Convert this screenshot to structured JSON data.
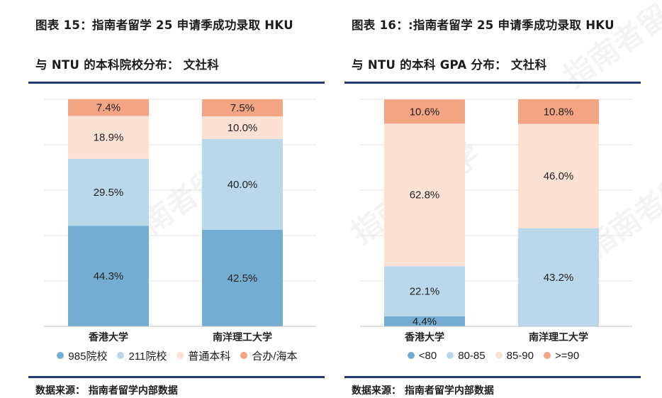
{
  "left_panel": {
    "title_line1": "图表 15：指南者留学 25 申请季成功录取 HKU",
    "title_line2": "与 NTU 的本科院校分布： 文社科",
    "source": "数据来源： 指南者留学内部数据"
  },
  "right_panel": {
    "title_line1": "图表 16：:指南者留学 25 申请季成功录取 HKU",
    "title_line2": "与 NTU 的本科 GPA 分布： 文社科",
    "source": "数据来源： 指南者留学内部数据"
  },
  "watermark_text": "指南者留学",
  "chart_data": [
    {
      "type": "bar",
      "stacked": true,
      "normalized_percent": true,
      "title": "图表 15：指南者留学 25 申请季成功录取 HKU 与 NTU 的本科院校分布： 文社科",
      "categories": [
        "香港大学",
        "南洋理工大学"
      ],
      "ylim": [
        0,
        100
      ],
      "grid": true,
      "legend_position": "bottom",
      "series": [
        {
          "name": "985院校",
          "values": [
            44.3,
            42.5
          ],
          "labels": [
            "44.3%",
            "42.5%"
          ],
          "color": "#74add1"
        },
        {
          "name": "211院校",
          "values": [
            29.5,
            40.0
          ],
          "labels": [
            "29.5%",
            "40.0%"
          ],
          "color": "#b9d8ea"
        },
        {
          "name": "普通本科",
          "values": [
            18.9,
            10.0
          ],
          "labels": [
            "18.9%",
            "10.0%"
          ],
          "color": "#fbe2d5"
        },
        {
          "name": "合办/海本",
          "values": [
            7.4,
            7.5
          ],
          "labels": [
            "7.4%",
            "7.5%"
          ],
          "color": "#f3a482"
        }
      ]
    },
    {
      "type": "bar",
      "stacked": true,
      "normalized_percent": true,
      "title": "图表 16：:指南者留学 25 申请季成功录取 HKU 与 NTU 的本科 GPA 分布： 文社科",
      "categories": [
        "香港大学",
        "南洋理工大学"
      ],
      "ylim": [
        0,
        100
      ],
      "grid": true,
      "legend_position": "bottom",
      "series": [
        {
          "name": "<80",
          "values": [
            4.4,
            0
          ],
          "labels": [
            "4.4%",
            ""
          ],
          "color": "#74add1"
        },
        {
          "name": "80-85",
          "values": [
            22.1,
            43.2
          ],
          "labels": [
            "22.1%",
            "43.2%"
          ],
          "color": "#b9d8ea"
        },
        {
          "name": "85-90",
          "values": [
            62.8,
            46.0
          ],
          "labels": [
            "62.8%",
            "46.0%"
          ],
          "color": "#fbe2d5"
        },
        {
          "name": ">=90",
          "values": [
            10.6,
            10.8
          ],
          "labels": [
            "10.6%",
            "10.8%"
          ],
          "color": "#f3a482"
        }
      ]
    }
  ]
}
